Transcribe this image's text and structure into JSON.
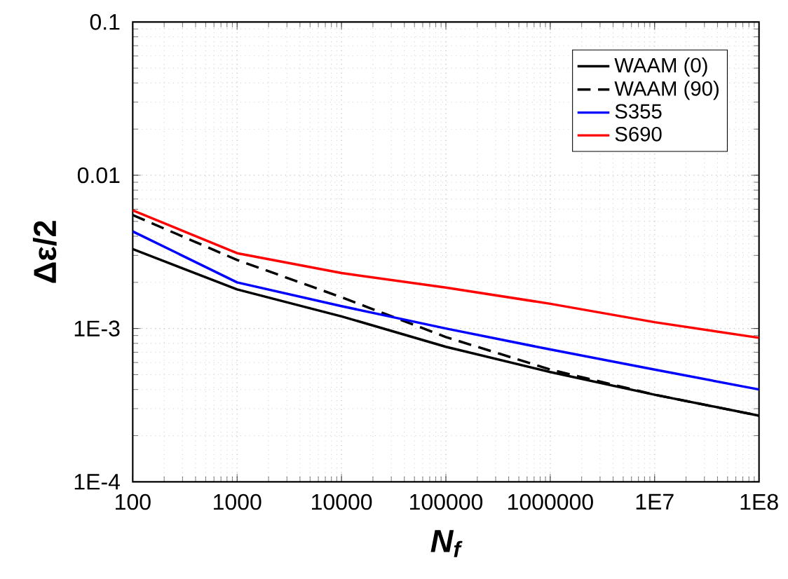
{
  "chart_data": {
    "type": "line",
    "xlabel": "N$_{f}$",
    "ylabel": "Δε/2",
    "x": [
      100,
      1000,
      10000,
      100000,
      1000000,
      10000000,
      100000000
    ],
    "series": [
      {
        "name": "WAAM (0)",
        "color": "#000000",
        "line_style": "solid",
        "values": [
          0.0033,
          0.0018,
          0.0012,
          0.00076,
          0.00052,
          0.00037,
          0.00027
        ]
      },
      {
        "name": "WAAM (90)",
        "color": "#000000",
        "line_style": "dashed",
        "values": [
          0.0055,
          0.0028,
          0.0016,
          0.00088,
          0.00054,
          0.00037,
          0.00027
        ]
      },
      {
        "name": "S355",
        "color": "#0000ff",
        "line_style": "solid",
        "values": [
          0.0043,
          0.002,
          0.0014,
          0.001,
          0.00073,
          0.00054,
          0.0004
        ]
      },
      {
        "name": "S690",
        "color": "#ff0000",
        "line_style": "solid",
        "values": [
          0.0059,
          0.0031,
          0.0023,
          0.00185,
          0.00145,
          0.0011,
          0.00087
        ]
      }
    ],
    "log": "xy",
    "xlim": [
      100,
      100000000
    ],
    "ylim": [
      0.0001,
      0.1
    ],
    "xticks": [
      100,
      1000,
      10000,
      100000,
      1000000,
      {
        "value": 10000000,
        "label": "1E7"
      },
      {
        "value": 100000000,
        "label": "1E8"
      }
    ],
    "yticks": [
      {
        "value": 0.0001,
        "label": "1E-4"
      },
      {
        "value": 0.001,
        "label": "1E-3"
      },
      0.01,
      0.1
    ],
    "grid": true,
    "legend": "top right"
  }
}
